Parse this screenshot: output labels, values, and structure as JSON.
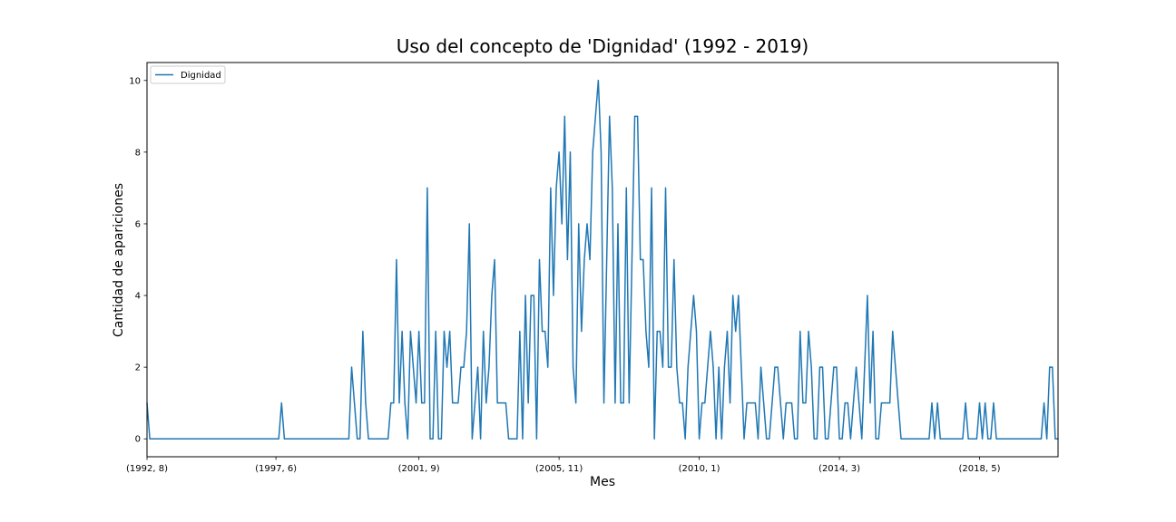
{
  "chart_data": {
    "type": "line",
    "title": "Uso del concepto de 'Dignidad' (1992 - 2019)",
    "xlabel": "Mes",
    "ylabel": "Cantidad de apariciones",
    "x_start": "(1992, 8)",
    "x_tick_labels": [
      "(1992, 8)",
      "(1997, 6)",
      "(2001, 9)",
      "(2005, 11)",
      "(2010, 1)",
      "(2014, 3)",
      "(2018, 5)"
    ],
    "x_tick_indices": [
      0,
      46,
      97,
      147,
      197,
      247,
      297
    ],
    "y_ticks": [
      0,
      2,
      4,
      6,
      8,
      10
    ],
    "ylim": [
      -0.5,
      10.5
    ],
    "grid": false,
    "legend_position": "top-left",
    "series": [
      {
        "name": "Dignidad",
        "color": "#1f77b4",
        "values": [
          1,
          0,
          0,
          0,
          0,
          0,
          0,
          0,
          0,
          0,
          0,
          0,
          0,
          0,
          0,
          0,
          0,
          0,
          0,
          0,
          0,
          0,
          0,
          0,
          0,
          0,
          0,
          0,
          0,
          0,
          0,
          0,
          0,
          0,
          0,
          0,
          0,
          0,
          0,
          0,
          0,
          0,
          0,
          0,
          0,
          0,
          0,
          0,
          1,
          0,
          0,
          0,
          0,
          0,
          0,
          0,
          0,
          0,
          0,
          0,
          0,
          0,
          0,
          0,
          0,
          0,
          0,
          0,
          0,
          0,
          0,
          0,
          0,
          2,
          1,
          0,
          0,
          3,
          1,
          0,
          0,
          0,
          0,
          0,
          0,
          0,
          0,
          1,
          1,
          5,
          1,
          3,
          1,
          0,
          3,
          2,
          1,
          3,
          1,
          1,
          7,
          0,
          0,
          3,
          0,
          0,
          3,
          2,
          3,
          1,
          1,
          1,
          2,
          2,
          3,
          6,
          0,
          1,
          2,
          0,
          3,
          1,
          2,
          4,
          5,
          1,
          1,
          1,
          1,
          0,
          0,
          0,
          0,
          3,
          0,
          4,
          1,
          4,
          4,
          0,
          5,
          3,
          3,
          2,
          7,
          4,
          7,
          8,
          6,
          9,
          5,
          8,
          2,
          1,
          6,
          3,
          5,
          6,
          5,
          8,
          9,
          10,
          8,
          1,
          5,
          9,
          7,
          1,
          6,
          1,
          1,
          7,
          1,
          5,
          9,
          9,
          5,
          5,
          3,
          2,
          7,
          0,
          3,
          3,
          2,
          7,
          2,
          2,
          5,
          2,
          1,
          1,
          0,
          2,
          3,
          4,
          3,
          0,
          1,
          1,
          2,
          3,
          2,
          0,
          2,
          0,
          2,
          3,
          1,
          4,
          3,
          4,
          2,
          0,
          1,
          1,
          1,
          1,
          0,
          2,
          1,
          0,
          0,
          1,
          2,
          2,
          1,
          0,
          1,
          1,
          1,
          0,
          0,
          3,
          1,
          1,
          3,
          2,
          0,
          0,
          2,
          2,
          0,
          0,
          1,
          2,
          2,
          0,
          0,
          1,
          1,
          0,
          1,
          2,
          1,
          0,
          2,
          4,
          1,
          3,
          0,
          0,
          1,
          1,
          1,
          1,
          3,
          2,
          1,
          0,
          0,
          0,
          0,
          0,
          0,
          0,
          0,
          0,
          0,
          0,
          1,
          0,
          1,
          0,
          0,
          0,
          0,
          0,
          0,
          0,
          0,
          0,
          1,
          0,
          0,
          0,
          0,
          1,
          0,
          1,
          0,
          0,
          1,
          0,
          0,
          0,
          0,
          0,
          0,
          0,
          0,
          0,
          0,
          0,
          0,
          0,
          0,
          0,
          0,
          0,
          1,
          0,
          2,
          2,
          0,
          0
        ]
      }
    ]
  }
}
